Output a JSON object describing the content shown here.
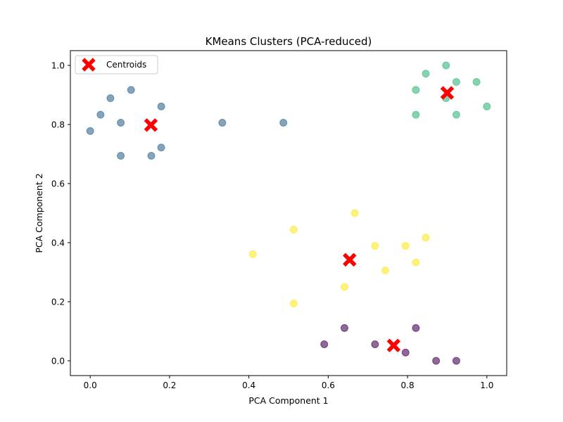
{
  "chart_data": {
    "type": "scatter",
    "title": "KMeans Clusters (PCA-reduced)",
    "xlabel": "PCA Component 1",
    "ylabel": "PCA Component 2",
    "xlim": [
      -0.05,
      1.05
    ],
    "ylim": [
      -0.05,
      1.05
    ],
    "xticks": [
      "0.0",
      "0.2",
      "0.4",
      "0.6",
      "0.8",
      "1.0"
    ],
    "yticks": [
      "0.0",
      "0.2",
      "0.4",
      "0.6",
      "0.8",
      "1.0"
    ],
    "grid": false,
    "legend": {
      "position": "upper-left",
      "entries": [
        "Centroids"
      ]
    },
    "series": [
      {
        "color": "#440154",
        "points": [
          [
            0.59,
            0.056
          ],
          [
            0.641,
            0.111
          ],
          [
            0.718,
            0.056
          ],
          [
            0.795,
            0.028
          ],
          [
            0.821,
            0.111
          ],
          [
            0.872,
            0.0
          ],
          [
            0.923,
            0.0
          ]
        ]
      },
      {
        "color": "#31688e",
        "points": [
          [
            0.0,
            0.778
          ],
          [
            0.026,
            0.833
          ],
          [
            0.051,
            0.889
          ],
          [
            0.077,
            0.806
          ],
          [
            0.077,
            0.694
          ],
          [
            0.103,
            0.917
          ],
          [
            0.154,
            0.694
          ],
          [
            0.179,
            0.861
          ],
          [
            0.179,
            0.722
          ],
          [
            0.333,
            0.806
          ],
          [
            0.487,
            0.806
          ]
        ]
      },
      {
        "color": "#35b779",
        "points": [
          [
            0.821,
            0.917
          ],
          [
            0.821,
            0.833
          ],
          [
            0.846,
            0.972
          ],
          [
            0.897,
            1.0
          ],
          [
            0.897,
            0.889
          ],
          [
            0.923,
            0.944
          ],
          [
            0.923,
            0.833
          ],
          [
            0.974,
            0.944
          ],
          [
            1.0,
            0.861
          ]
        ]
      },
      {
        "color": "#fde725",
        "points": [
          [
            0.41,
            0.361
          ],
          [
            0.513,
            0.444
          ],
          [
            0.513,
            0.194
          ],
          [
            0.641,
            0.25
          ],
          [
            0.667,
            0.5
          ],
          [
            0.718,
            0.389
          ],
          [
            0.744,
            0.306
          ],
          [
            0.795,
            0.389
          ],
          [
            0.821,
            0.333
          ],
          [
            0.846,
            0.417
          ]
        ]
      }
    ],
    "centroids": {
      "name": "Centroids",
      "color": "#ff0000",
      "marker": "X",
      "points": [
        [
          0.765,
          0.052
        ],
        [
          0.153,
          0.798
        ],
        [
          0.9,
          0.907
        ],
        [
          0.654,
          0.342
        ]
      ]
    }
  }
}
